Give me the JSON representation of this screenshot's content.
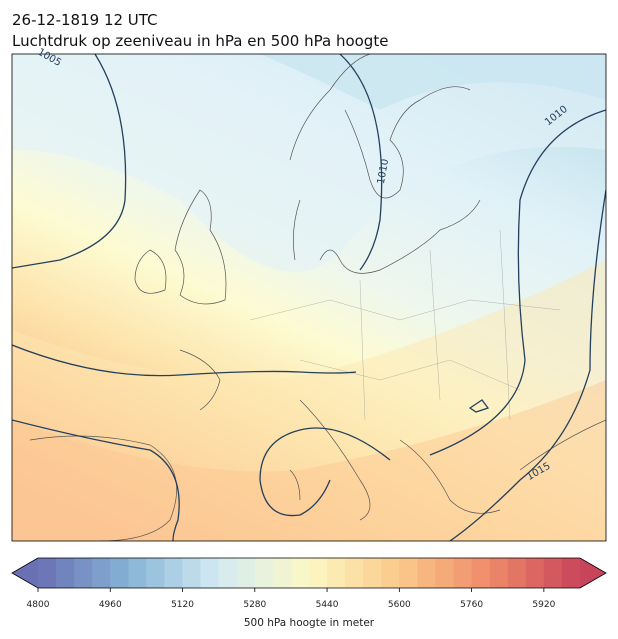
{
  "header": {
    "title": "26-12-1819 12 UTC",
    "subtitle": "Luchtdruk op zeeniveau in hPa en 500 hPa hoogte"
  },
  "map": {
    "contour_labels": [
      "1005",
      "1010",
      "1010",
      "1015"
    ]
  },
  "colorbar": {
    "label": "500 hPa hoogte in meter",
    "lim": [
      4800,
      6000
    ],
    "level_step": 40,
    "ticks": [
      4800,
      4960,
      5120,
      5280,
      5440,
      5600,
      5760,
      5920
    ],
    "colors": [
      "#6a70b4",
      "#86b3d6",
      "#d4ebf3",
      "#fcf8c4",
      "#fbc98a",
      "#ef8a6a",
      "#c8445a"
    ]
  }
}
